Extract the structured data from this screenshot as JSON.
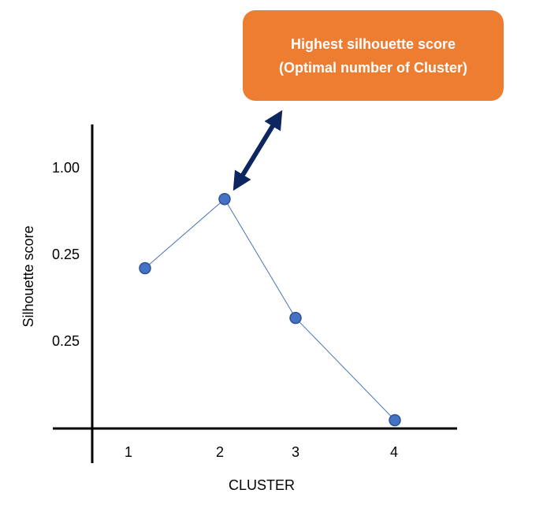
{
  "chart_data": {
    "type": "line",
    "xlabel": "CLUSTER",
    "ylabel": "Silhouette score",
    "categories": [
      "1",
      "2",
      "3",
      "4"
    ],
    "y_tick_labels": [
      "1.00",
      "0.25",
      "0.25"
    ],
    "series": [
      {
        "values": [
          0.58,
          0.83,
          0.4,
          0.03
        ]
      }
    ],
    "ylim": [
      0,
      1.1
    ],
    "grid": false,
    "annotation": {
      "line1": "Highest silhouette score",
      "line2": "(Optimal number of Cluster)",
      "points_to_category": "2"
    },
    "colors": {
      "line": "#4a72b8",
      "marker_fill": "#4472c4",
      "marker_edge": "#2f528f",
      "callout": "#ed7d31",
      "arrow": "#0d2660"
    }
  }
}
